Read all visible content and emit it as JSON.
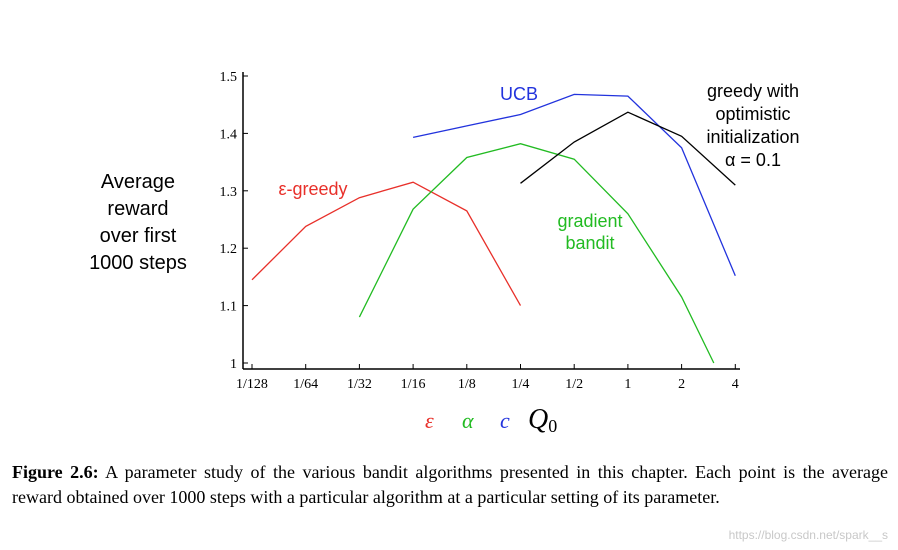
{
  "chart_data": {
    "type": "line",
    "categories": [
      "1/128",
      "1/64",
      "1/32",
      "1/16",
      "1/8",
      "1/4",
      "1/2",
      "1",
      "2",
      "4"
    ],
    "ylim": [
      1.0,
      1.5
    ],
    "yticks": [
      {
        "value": 1.0,
        "label": "1"
      },
      {
        "value": 1.1,
        "label": "1.1"
      },
      {
        "value": 1.2,
        "label": "1.2"
      },
      {
        "value": 1.3,
        "label": "1.3"
      },
      {
        "value": 1.4,
        "label": "1.4"
      },
      {
        "value": 1.5,
        "label": "1.5"
      }
    ],
    "ylabel": [
      "Average",
      "reward",
      "over first",
      "1000 steps"
    ],
    "xparams": [
      {
        "symbol": "ε",
        "color": "#e8302a"
      },
      {
        "symbol": "α",
        "color": "#22bb22"
      },
      {
        "symbol": "c",
        "color": "#2233dd"
      },
      {
        "symbol": "Q",
        "sub": "0",
        "color": "#000000"
      }
    ],
    "series": [
      {
        "name": "ε-greedy",
        "label_lines": [
          "ε-greedy"
        ],
        "color": "#e8302a",
        "points": [
          [
            0,
            1.145
          ],
          [
            1,
            1.238
          ],
          [
            2,
            1.288
          ],
          [
            3,
            1.315
          ],
          [
            4,
            1.265
          ],
          [
            5,
            1.1
          ]
        ]
      },
      {
        "name": "gradient bandit",
        "label_lines": [
          "gradient",
          "bandit"
        ],
        "color": "#22bb22",
        "points": [
          [
            2,
            1.08
          ],
          [
            3,
            1.268
          ],
          [
            4,
            1.358
          ],
          [
            5,
            1.382
          ],
          [
            6,
            1.355
          ],
          [
            7,
            1.26
          ],
          [
            8,
            1.115
          ],
          [
            8.6,
            1.0
          ]
        ]
      },
      {
        "name": "UCB",
        "label_lines": [
          "UCB"
        ],
        "color": "#2233dd",
        "points": [
          [
            3,
            1.393
          ],
          [
            4,
            1.413
          ],
          [
            5,
            1.433
          ],
          [
            6,
            1.468
          ],
          [
            7,
            1.465
          ],
          [
            8,
            1.375
          ],
          [
            9,
            1.152
          ]
        ]
      },
      {
        "name": "greedy with optimistic initialization α = 0.1",
        "label_lines": [
          "greedy with",
          "optimistic",
          "initialization",
          "α = 0.1"
        ],
        "color": "#000000",
        "points": [
          [
            5,
            1.313
          ],
          [
            6,
            1.385
          ],
          [
            7,
            1.437
          ],
          [
            8,
            1.395
          ],
          [
            9,
            1.31
          ]
        ]
      }
    ]
  },
  "caption": {
    "label": "Figure 2.6:",
    "text": " A parameter study of the various bandit algorithms presented in this chapter. Each point is the average reward obtained over 1000 steps with a particular algorithm at a particular setting of its parameter."
  },
  "watermark": "https://blog.csdn.net/spark__s"
}
